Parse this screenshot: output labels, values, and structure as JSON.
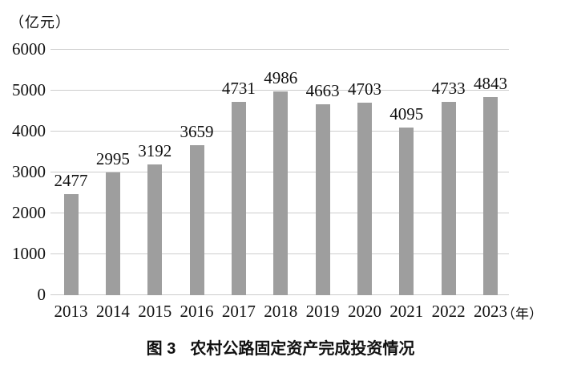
{
  "chart_data": {
    "type": "bar",
    "figure_label": "图 3",
    "title": "农村公路固定资产完成投资情况",
    "unit_y": "（亿元）",
    "unit_x": "（年）",
    "categories": [
      "2013",
      "2014",
      "2015",
      "2016",
      "2017",
      "2018",
      "2019",
      "2020",
      "2021",
      "2022",
      "2023"
    ],
    "values": [
      2477,
      2995,
      3192,
      3659,
      4731,
      4986,
      4663,
      4703,
      4095,
      4733,
      4843
    ],
    "data_labels": [
      "2477",
      "2995",
      "3192",
      "3659",
      "4731",
      "4986",
      "4663",
      "4703",
      "4095",
      "4733",
      "4843"
    ],
    "y_ticks": [
      0,
      1000,
      2000,
      3000,
      4000,
      5000,
      6000
    ],
    "ylim": [
      0,
      6000
    ],
    "grid": "horizontal",
    "legend": "none",
    "bar_color": "#9e9e9e",
    "gridline_color": "#cdcdcd",
    "text_color": "#111111",
    "background_color": "#ffffff"
  }
}
